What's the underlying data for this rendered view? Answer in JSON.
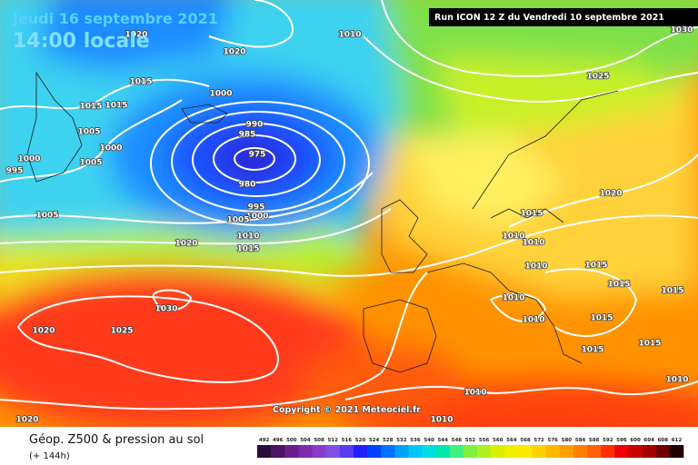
{
  "header": {
    "date": "Jeudi 16 septembre 2021",
    "time": "14:00 locale",
    "run": "Run ICON 12 Z du Vendredi 10 septembre 2021"
  },
  "copyright": "Copyright © 2021 Meteociel.fr",
  "footer": {
    "title": "Géop. Z500 & pression au sol",
    "lead": "(+ 144h)"
  },
  "isobar_labels": [
    1020,
    1020,
    1010,
    1030,
    1015,
    1000,
    1015,
    1015,
    990,
    985,
    975,
    1005,
    1000,
    1005,
    1000,
    995,
    980,
    995,
    1000,
    1005,
    1005,
    1010,
    1015,
    1020,
    1025,
    1020,
    1015,
    1010,
    1010,
    1010,
    1015,
    1015,
    1015,
    1010,
    1010,
    1015,
    1015,
    1015,
    1010,
    1030,
    1025,
    1020,
    1010,
    1010,
    1020
  ],
  "scale": {
    "values": [
      492,
      496,
      500,
      504,
      508,
      512,
      516,
      520,
      524,
      528,
      532,
      536,
      540,
      544,
      548,
      552,
      556,
      560,
      564,
      568,
      572,
      576,
      580,
      584,
      588,
      592,
      596,
      600,
      604,
      608,
      612
    ],
    "colors": [
      "#2b0a3d",
      "#4b1466",
      "#6a1e8a",
      "#7f2aa8",
      "#8a3cc8",
      "#8050e0",
      "#5a3cf0",
      "#2020ff",
      "#0040ff",
      "#0070ff",
      "#00a0ff",
      "#00c8ff",
      "#00e0e0",
      "#00e8b0",
      "#40f080",
      "#80f040",
      "#b0f020",
      "#d8f000",
      "#f0f000",
      "#ffe800",
      "#ffd000",
      "#ffb800",
      "#ffa000",
      "#ff8000",
      "#ff6000",
      "#ff3000",
      "#f00000",
      "#c80000",
      "#a00000",
      "#700000",
      "#200000"
    ]
  }
}
